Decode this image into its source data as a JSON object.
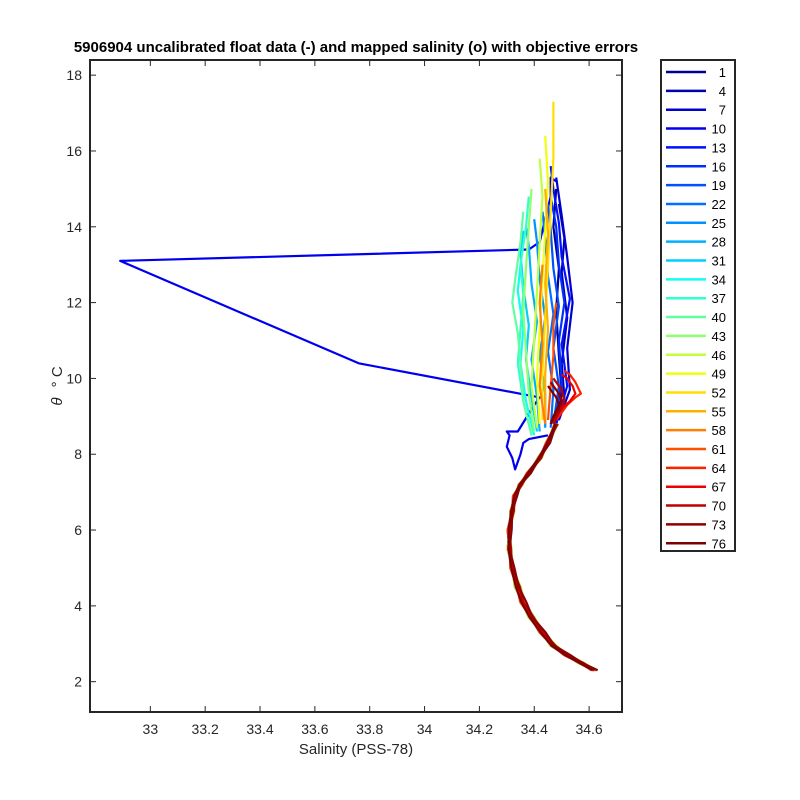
{
  "chart_data": {
    "type": "line",
    "title": "5906904 uncalibrated float data (-) and mapped salinity (o) with objective errors",
    "xlabel": "Salinity (PSS-78)",
    "ylabel_symbol": "θ",
    "ylabel_unit": "° C",
    "xlim": [
      32.78,
      34.72
    ],
    "ylim": [
      1.2,
      18.4
    ],
    "xticks": [
      33,
      33.2,
      33.4,
      33.6,
      33.8,
      34,
      34.2,
      34.4,
      34.6
    ],
    "xtick_labels": [
      "33",
      "33.2",
      "33.4",
      "33.6",
      "33.8",
      "34",
      "34.2",
      "34.4",
      "34.6"
    ],
    "yticks": [
      2,
      4,
      6,
      8,
      10,
      12,
      14,
      16,
      18
    ],
    "ytick_labels": [
      "2",
      "4",
      "6",
      "8",
      "10",
      "12",
      "14",
      "16",
      "18"
    ],
    "legend_position": "outside-right",
    "common_deep_path": {
      "S": [
        34.62,
        34.57,
        34.52,
        34.47,
        34.43,
        34.39,
        34.36,
        34.34,
        34.32,
        34.31,
        34.31,
        34.32,
        34.33,
        34.35,
        34.38,
        34.42,
        34.45,
        34.48
      ],
      "T": [
        2.3,
        2.5,
        2.7,
        2.95,
        3.3,
        3.7,
        4.1,
        4.5,
        5.0,
        5.5,
        6.0,
        6.5,
        6.9,
        7.2,
        7.5,
        7.9,
        8.3,
        8.8
      ]
    },
    "series": [
      {
        "name": "1",
        "color": "#00008F",
        "upper": {
          "S": [
            34.48,
            34.5,
            34.49,
            34.48,
            34.49,
            34.47,
            34.48
          ],
          "T": [
            8.8,
            9.6,
            10.6,
            11.8,
            12.9,
            14.0,
            15.0
          ]
        }
      },
      {
        "name": "4",
        "color": "#0000AF",
        "upper": {
          "S": [
            34.48,
            34.51,
            34.5,
            34.52,
            34.5,
            34.51,
            34.49
          ],
          "T": [
            8.8,
            9.5,
            10.4,
            11.6,
            12.8,
            13.7,
            14.6
          ]
        }
      },
      {
        "name": "7",
        "color": "#0000CF",
        "upper": {
          "S": [
            34.49,
            34.53,
            34.52,
            34.54,
            34.52,
            34.5,
            34.48
          ],
          "T": [
            8.9,
            9.7,
            10.8,
            12.0,
            13.2,
            14.3,
            15.3
          ]
        }
      },
      {
        "name": "10",
        "color": "#0000EF",
        "special": true,
        "upper": {
          "S": [
            34.45,
            34.38,
            34.36,
            34.35,
            34.34,
            34.33,
            34.32,
            34.3,
            34.31,
            34.3,
            34.32,
            34.34,
            34.4,
            34.42,
            33.76,
            32.89,
            34.38,
            34.42,
            34.44,
            34.46,
            34.46,
            34.48
          ],
          "T": [
            8.5,
            8.4,
            8.3,
            8.0,
            7.8,
            7.6,
            7.9,
            8.2,
            8.5,
            8.6,
            8.6,
            8.6,
            9.3,
            9.5,
            10.4,
            13.1,
            13.4,
            13.6,
            14.2,
            14.8,
            15.3,
            15.2
          ]
        }
      },
      {
        "name": "13",
        "color": "#0010FF",
        "upper": {
          "S": [
            34.48,
            34.52,
            34.5,
            34.53,
            34.5,
            34.49,
            34.47,
            34.46
          ],
          "T": [
            8.8,
            9.8,
            10.9,
            12.1,
            13.2,
            14.1,
            15.0,
            15.6
          ]
        }
      },
      {
        "name": "16",
        "color": "#0030FF",
        "upper": {
          "S": [
            34.47,
            34.5,
            34.49,
            34.51,
            34.49,
            34.48,
            34.46
          ],
          "T": [
            8.8,
            9.9,
            11.0,
            12.0,
            13.0,
            14.0,
            14.8
          ]
        }
      },
      {
        "name": "19",
        "color": "#0050FF",
        "upper": {
          "S": [
            34.47,
            34.49,
            34.47,
            34.49,
            34.47,
            34.46,
            34.45
          ],
          "T": [
            8.8,
            9.8,
            10.8,
            11.9,
            12.9,
            13.9,
            14.6
          ]
        }
      },
      {
        "name": "22",
        "color": "#0070FF",
        "upper": {
          "S": [
            34.46,
            34.47,
            34.45,
            34.47,
            34.45,
            34.44,
            34.43
          ],
          "T": [
            8.7,
            9.7,
            10.7,
            11.7,
            12.7,
            13.7,
            14.4
          ]
        }
      },
      {
        "name": "25",
        "color": "#0090FF",
        "upper": {
          "S": [
            34.44,
            34.44,
            34.42,
            34.44,
            34.42,
            34.41,
            34.4
          ],
          "T": [
            8.7,
            9.6,
            10.6,
            11.6,
            12.6,
            13.6,
            14.2
          ]
        }
      },
      {
        "name": "28",
        "color": "#00B0FF",
        "upper": {
          "S": [
            34.42,
            34.41,
            34.39,
            34.41,
            34.39,
            34.38,
            34.37
          ],
          "T": [
            8.6,
            9.5,
            10.5,
            11.5,
            12.5,
            13.5,
            14.0
          ]
        }
      },
      {
        "name": "31",
        "color": "#00D0FF",
        "upper": {
          "S": [
            34.41,
            34.39,
            34.37,
            34.38,
            34.36,
            34.35,
            34.36
          ],
          "T": [
            8.6,
            9.5,
            10.5,
            11.4,
            12.4,
            13.3,
            13.9
          ]
        }
      },
      {
        "name": "34",
        "color": "#10FFEF",
        "upper": {
          "S": [
            34.4,
            34.37,
            34.35,
            34.36,
            34.34,
            34.35
          ],
          "T": [
            8.5,
            9.4,
            10.4,
            11.3,
            12.3,
            13.0
          ]
        }
      },
      {
        "name": "37",
        "color": "#30FFCF",
        "upper": {
          "S": [
            34.39,
            34.36,
            34.34,
            34.35,
            34.36,
            34.35,
            34.37,
            34.38
          ],
          "T": [
            8.5,
            9.4,
            10.4,
            11.3,
            12.2,
            13.0,
            14.0,
            14.8
          ]
        }
      },
      {
        "name": "40",
        "color": "#60FF9F",
        "upper": {
          "S": [
            34.39,
            34.36,
            34.35,
            34.34,
            34.32,
            34.33,
            34.35,
            34.36
          ],
          "T": [
            8.5,
            9.4,
            10.4,
            11.2,
            12.0,
            12.6,
            13.6,
            14.4
          ]
        }
      },
      {
        "name": "43",
        "color": "#90FF6F",
        "upper": {
          "S": [
            34.4,
            34.38,
            34.37,
            34.36,
            34.37,
            34.38,
            34.39
          ],
          "T": [
            8.6,
            9.6,
            10.7,
            11.8,
            12.9,
            14.0,
            15.0
          ]
        }
      },
      {
        "name": "46",
        "color": "#C0FF3F",
        "upper": {
          "S": [
            34.41,
            34.39,
            34.4,
            34.41,
            34.42,
            34.43,
            34.42
          ],
          "T": [
            8.7,
            9.8,
            11.0,
            12.3,
            13.6,
            14.8,
            15.8
          ]
        }
      },
      {
        "name": "49",
        "color": "#EFFF10",
        "upper": {
          "S": [
            34.42,
            34.41,
            34.42,
            34.43,
            34.44,
            34.45,
            34.44
          ],
          "T": [
            8.8,
            10.0,
            11.3,
            12.6,
            13.9,
            15.2,
            16.4
          ]
        }
      },
      {
        "name": "52",
        "color": "#FFDF00",
        "upper": {
          "S": [
            34.43,
            34.43,
            34.44,
            34.45,
            34.46,
            34.47,
            34.47
          ],
          "T": [
            8.9,
            10.2,
            11.6,
            13.0,
            14.4,
            15.8,
            17.3
          ]
        }
      },
      {
        "name": "55",
        "color": "#FFAF00",
        "upper": {
          "S": [
            34.44,
            34.44,
            34.45,
            34.44,
            34.45,
            34.44
          ],
          "T": [
            8.9,
            10.1,
            11.3,
            12.5,
            13.8,
            15.0
          ]
        }
      },
      {
        "name": "58",
        "color": "#FF7F00",
        "upper": {
          "S": [
            34.44,
            34.42,
            34.43,
            34.42,
            34.43
          ],
          "T": [
            8.8,
            9.8,
            10.9,
            12.0,
            13.0
          ]
        }
      },
      {
        "name": "61",
        "color": "#FF5000",
        "upper": {
          "S": [
            34.45,
            34.46,
            34.47,
            34.47,
            34.48
          ],
          "T": [
            8.9,
            9.8,
            10.6,
            11.4,
            12.0
          ]
        }
      },
      {
        "name": "64",
        "color": "#FF2000",
        "upper": {
          "S": [
            34.48,
            34.52,
            34.55,
            34.57,
            34.55,
            34.53,
            34.51
          ],
          "T": [
            8.9,
            9.3,
            9.5,
            9.6,
            9.9,
            10.1,
            10.2
          ]
        }
      },
      {
        "name": "67",
        "color": "#EF0000",
        "upper": {
          "S": [
            34.47,
            34.5,
            34.53,
            34.55,
            34.54,
            34.52,
            34.5
          ],
          "T": [
            8.9,
            9.2,
            9.4,
            9.6,
            9.8,
            10.0,
            10.1
          ]
        }
      },
      {
        "name": "70",
        "color": "#BF0000",
        "upper": {
          "S": [
            34.47,
            34.49,
            34.51,
            34.5,
            34.48,
            34.47
          ],
          "T": [
            8.8,
            9.1,
            9.4,
            9.7,
            9.9,
            10.0
          ]
        }
      },
      {
        "name": "73",
        "color": "#8F0000",
        "upper": {
          "S": [
            34.46,
            34.48,
            34.5,
            34.49,
            34.47,
            34.46
          ],
          "T": [
            8.8,
            9.1,
            9.4,
            9.6,
            9.8,
            9.9
          ]
        }
      },
      {
        "name": "76",
        "color": "#7F0000",
        "upper": {
          "S": [
            34.46,
            34.47,
            34.49,
            34.48,
            34.46,
            34.45
          ],
          "T": [
            8.8,
            9.0,
            9.3,
            9.5,
            9.7,
            9.8
          ]
        }
      }
    ]
  }
}
